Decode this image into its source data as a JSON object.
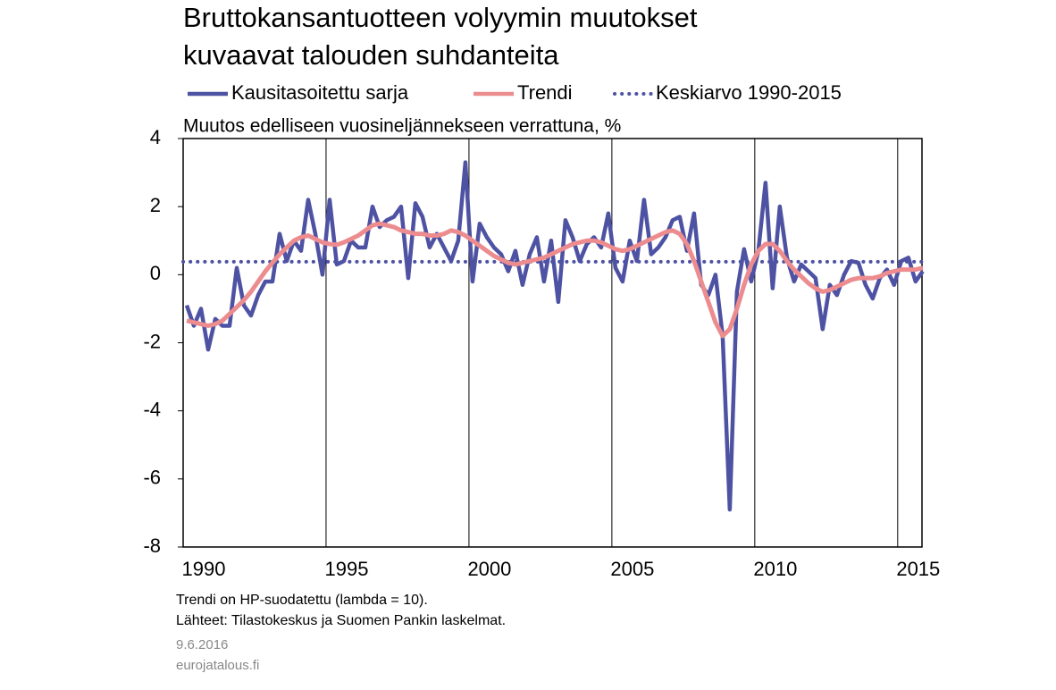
{
  "chart_data": {
    "type": "line",
    "title_lines": [
      "Bruttokansantuotteen volyymin muutokset",
      "kuvaavat talouden suhdanteita"
    ],
    "y_axis_label": "Muutos edelliseen vuosineljännekseen verrattuna, %",
    "notes": [
      "Trendi on HP-suodatettu (lambda = 10).",
      "Lähteet: Tilastokeskus ja Suomen Pankin laskelmat."
    ],
    "date": "9.6.2016",
    "source": "eurojatalous.fi",
    "xlim": [
      1990,
      2015.85
    ],
    "xticks": [
      1990,
      1995,
      2000,
      2005,
      2010,
      2015
    ],
    "ylim": [
      -8,
      4
    ],
    "yticks": [
      -8,
      -6,
      -4,
      -2,
      0,
      2,
      4
    ],
    "grid": "x",
    "x": [
      1990.125,
      1990.375,
      1990.625,
      1990.875,
      1991.125,
      1991.375,
      1991.625,
      1991.875,
      1992.125,
      1992.375,
      1992.625,
      1992.875,
      1993.125,
      1993.375,
      1993.625,
      1993.875,
      1994.125,
      1994.375,
      1994.625,
      1994.875,
      1995.125,
      1995.375,
      1995.625,
      1995.875,
      1996.125,
      1996.375,
      1996.625,
      1996.875,
      1997.125,
      1997.375,
      1997.625,
      1997.875,
      1998.125,
      1998.375,
      1998.625,
      1998.875,
      1999.125,
      1999.375,
      1999.625,
      1999.875,
      2000.125,
      2000.375,
      2000.625,
      2000.875,
      2001.125,
      2001.375,
      2001.625,
      2001.875,
      2002.125,
      2002.375,
      2002.625,
      2002.875,
      2003.125,
      2003.375,
      2003.625,
      2003.875,
      2004.125,
      2004.375,
      2004.625,
      2004.875,
      2005.125,
      2005.375,
      2005.625,
      2005.875,
      2006.125,
      2006.375,
      2006.625,
      2006.875,
      2007.125,
      2007.375,
      2007.625,
      2007.875,
      2008.125,
      2008.375,
      2008.625,
      2008.875,
      2009.125,
      2009.375,
      2009.625,
      2009.875,
      2010.125,
      2010.375,
      2010.625,
      2010.875,
      2011.125,
      2011.375,
      2011.625,
      2011.875,
      2012.125,
      2012.375,
      2012.625,
      2012.875,
      2013.125,
      2013.375,
      2013.625,
      2013.875,
      2014.125,
      2014.375,
      2014.625,
      2014.875,
      2015.125,
      2015.375,
      2015.625,
      2015.875
    ],
    "series": [
      {
        "name": "Kausitasoitettu sarja",
        "color": "#4e52a3",
        "values": [
          -0.9,
          -1.5,
          -1.0,
          -2.2,
          -1.3,
          -1.5,
          -1.5,
          0.2,
          -0.9,
          -1.2,
          -0.6,
          -0.2,
          -0.2,
          1.2,
          0.4,
          1.0,
          0.7,
          2.2,
          1.2,
          0.0,
          2.2,
          0.3,
          0.4,
          1.0,
          0.8,
          0.8,
          2.0,
          1.4,
          1.6,
          1.7,
          2.0,
          -0.1,
          2.1,
          1.7,
          0.8,
          1.2,
          0.8,
          0.4,
          1.0,
          3.3,
          -0.2,
          1.5,
          1.1,
          0.8,
          0.6,
          0.1,
          0.7,
          -0.3,
          0.6,
          1.1,
          -0.2,
          1.0,
          -0.8,
          1.6,
          1.1,
          0.4,
          0.9,
          1.1,
          0.8,
          1.8,
          0.2,
          -0.2,
          1.0,
          0.4,
          2.2,
          0.6,
          0.8,
          1.1,
          1.6,
          1.7,
          0.7,
          1.8,
          -0.3,
          -0.6,
          0.0,
          -1.8,
          -6.9,
          -0.5,
          0.75,
          -0.2,
          0.7,
          2.7,
          -0.4,
          2.0,
          0.5,
          -0.2,
          0.3,
          0.1,
          -0.1,
          -1.6,
          -0.3,
          -0.6,
          0.0,
          0.4,
          0.35,
          -0.3,
          -0.7,
          -0.1,
          0.15,
          -0.3,
          0.4,
          0.5,
          -0.2,
          0.1
        ]
      },
      {
        "name": "Trendi",
        "color": "#ec8c8f",
        "values": [
          -1.35,
          -1.4,
          -1.45,
          -1.5,
          -1.45,
          -1.35,
          -1.15,
          -0.95,
          -0.75,
          -0.5,
          -0.2,
          0.1,
          0.35,
          0.6,
          0.8,
          1.0,
          1.1,
          1.15,
          1.05,
          0.95,
          0.9,
          0.88,
          0.95,
          1.05,
          1.15,
          1.3,
          1.45,
          1.5,
          1.45,
          1.4,
          1.3,
          1.25,
          1.2,
          1.2,
          1.15,
          1.15,
          1.2,
          1.3,
          1.25,
          1.15,
          1.0,
          0.85,
          0.7,
          0.55,
          0.45,
          0.35,
          0.3,
          0.35,
          0.4,
          0.45,
          0.5,
          0.6,
          0.7,
          0.8,
          0.9,
          0.95,
          1.0,
          1.0,
          0.95,
          0.85,
          0.75,
          0.7,
          0.75,
          0.85,
          0.95,
          1.05,
          1.15,
          1.25,
          1.3,
          1.2,
          0.9,
          0.4,
          -0.2,
          -0.8,
          -1.4,
          -1.8,
          -1.6,
          -1.0,
          -0.3,
          0.3,
          0.7,
          0.9,
          0.9,
          0.7,
          0.4,
          0.15,
          -0.05,
          -0.25,
          -0.4,
          -0.5,
          -0.45,
          -0.35,
          -0.25,
          -0.15,
          -0.1,
          -0.1,
          -0.1,
          -0.05,
          0.05,
          0.1,
          0.15,
          0.15,
          0.15,
          0.2
        ]
      }
    ],
    "reference_line": {
      "name": "Keskiarvo 1990-2015",
      "value": 0.38,
      "color": "#4e52a3"
    }
  }
}
